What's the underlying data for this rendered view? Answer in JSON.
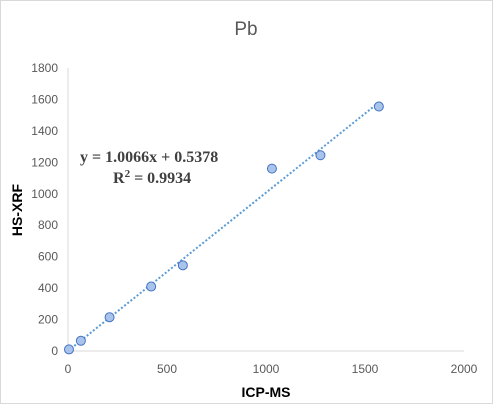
{
  "chart_data": {
    "type": "scatter",
    "title": "Pb",
    "xlabel": "ICP-MS",
    "ylabel": "HS-XRF",
    "xlim": [
      0,
      2000
    ],
    "ylim": [
      0,
      1800
    ],
    "x_ticks": [
      "0",
      "500",
      "1000",
      "1500",
      "2000"
    ],
    "y_ticks": [
      "0",
      "200",
      "400",
      "600",
      "800",
      "1000",
      "1200",
      "1400",
      "1600",
      "1800"
    ],
    "x_tick_values": [
      0,
      500,
      1000,
      1500,
      2000
    ],
    "y_tick_values": [
      0,
      200,
      400,
      600,
      800,
      1000,
      1200,
      1400,
      1600,
      1800
    ],
    "grid": false,
    "legend": "none",
    "points": [
      {
        "x": 5,
        "y": 10
      },
      {
        "x": 65,
        "y": 65
      },
      {
        "x": 210,
        "y": 215
      },
      {
        "x": 420,
        "y": 410
      },
      {
        "x": 580,
        "y": 545
      },
      {
        "x": 1030,
        "y": 1160
      },
      {
        "x": 1275,
        "y": 1245
      },
      {
        "x": 1570,
        "y": 1555
      }
    ],
    "trendline": {
      "slope": 1.0066,
      "intercept": 0.5378,
      "x_range": [
        0,
        1570
      ]
    },
    "annotations": {
      "equation": "y = 1.0066x + 0.5378",
      "r2_label": "R",
      "r2_sup": "2",
      "r2_value": " = 0.9934"
    },
    "colors": {
      "marker_fill": "#a9c4eb",
      "marker_stroke": "#4472c4",
      "trendline": "#5b9bd5",
      "axis": "#d9d9d9"
    }
  }
}
